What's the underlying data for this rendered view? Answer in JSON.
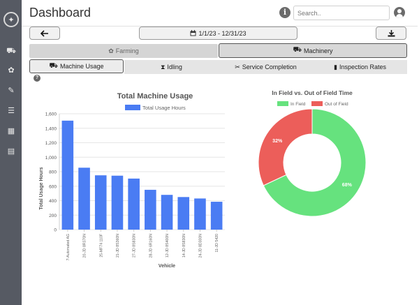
{
  "header": {
    "title": "Dashboard",
    "search_placeholder": "Search.."
  },
  "toolbar": {
    "back_icon": "arrow-left-icon",
    "date_range": "1/1/23 - 12/31/23",
    "date_icon": "calendar-icon",
    "download_icon": "download-icon"
  },
  "categories": {
    "farming": "Farming",
    "machinery": "Machinery",
    "active": "Machinery"
  },
  "subtabs": [
    {
      "label": "Machine Usage",
      "icon": "truck-icon"
    },
    {
      "label": "Idling",
      "icon": "hourglass-icon"
    },
    {
      "label": "Service Completion",
      "icon": "tools-icon"
    },
    {
      "label": "Inspection Rates",
      "icon": "clipboard-icon"
    }
  ],
  "sidebar": {
    "items": [
      "tractor-icon",
      "seedling-icon",
      "wrench-icon",
      "checklist-icon",
      "map-icon",
      "report-icon"
    ]
  },
  "colors": {
    "bar": "#4a7cf3",
    "in_field": "#66e27e",
    "out_of_field": "#ec5e5a",
    "active_tab_bg": "#e3e3e3",
    "inactive_tab_bg": "#d5d5d5"
  },
  "chart_data": [
    {
      "type": "bar",
      "title": "Total Machine Usage",
      "xlabel": "Vehicle",
      "ylabel": "Total Usage Hours",
      "legend": "Total Usage Hours",
      "ylim": [
        0,
        1600
      ],
      "yticks": [
        0,
        200,
        400,
        600,
        800,
        1000,
        1200,
        1400,
        1600
      ],
      "ytick_labels": [
        "0",
        "200",
        "400",
        "600",
        "800",
        "1,000",
        "1,200",
        "1,400",
        "1,600"
      ],
      "categories": [
        "7-Automated AG",
        "20-JD 8R370N",
        "25-MF74 110F",
        "21-JD 8S360N",
        "27-JD 8S830N",
        "28-JD 6R160N",
        "12-JD 8S400N",
        "14-JD 8S830N",
        "24-JD 8D300N",
        "11-JD 5420"
      ],
      "values": [
        1505,
        855,
        750,
        745,
        705,
        550,
        480,
        450,
        430,
        385
      ]
    },
    {
      "type": "pie",
      "title": "In Field vs. Out of Field Time",
      "labels": [
        "In Field",
        "Out of Field"
      ],
      "values": [
        68,
        32
      ],
      "value_labels": [
        "68%",
        "32%"
      ]
    }
  ]
}
